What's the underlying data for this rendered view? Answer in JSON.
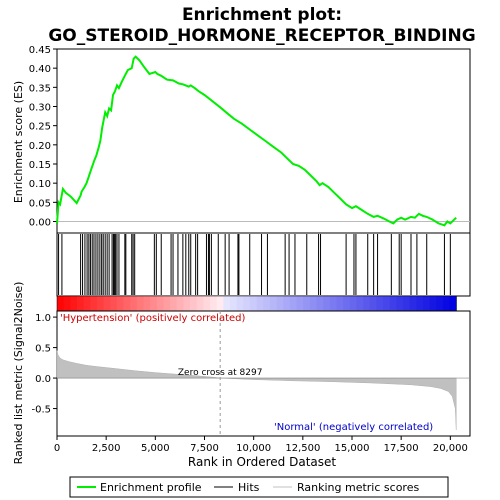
{
  "chart_data": {
    "type": "line",
    "title_line1": "Enrichment plot:",
    "title_line2": "GO_STEROID_HORMONE_RECEPTOR_BINDING",
    "top_panel": {
      "ylabel": "Enrichment score (ES)",
      "ylim": [
        -0.03,
        0.45
      ],
      "yticks": [
        "0.00",
        "0.05",
        "0.10",
        "0.15",
        "0.20",
        "0.25",
        "0.30",
        "0.35",
        "0.40",
        "0.45"
      ],
      "xlim": [
        0,
        21000
      ],
      "series": [
        {
          "name": "Enrichment profile",
          "color": "#00ee00",
          "x": [
            0,
            80,
            160,
            300,
            450,
            700,
            1000,
            1200,
            1250,
            1400,
            1500,
            1600,
            1700,
            1800,
            1900,
            2000,
            2100,
            2200,
            2300,
            2350,
            2450,
            2550,
            2650,
            2750,
            2850,
            2950,
            3050,
            3150,
            3300,
            3450,
            3600,
            3800,
            3900,
            4000,
            4200,
            4400,
            4700,
            5000,
            5100,
            5300,
            5600,
            5900,
            6200,
            6400,
            6700,
            6800,
            7000,
            7200,
            7500,
            7800,
            8000,
            8300,
            8600,
            9000,
            9400,
            9800,
            10200,
            10600,
            11000,
            11400,
            11700,
            12000,
            12300,
            12600,
            12900,
            13200,
            13350,
            13500,
            13800,
            14100,
            14400,
            14700,
            15000,
            15200,
            15500,
            15800,
            16100,
            16300,
            16600,
            16900,
            17100,
            17300,
            17500,
            17700,
            18000,
            18200,
            18400,
            18600,
            18800,
            19100,
            19400,
            19700,
            19850,
            20000,
            20300
          ],
          "y": [
            -0.005,
            0.05,
            0.045,
            0.085,
            0.075,
            0.065,
            0.048,
            0.068,
            0.078,
            0.09,
            0.1,
            0.115,
            0.13,
            0.145,
            0.16,
            0.172,
            0.19,
            0.21,
            0.245,
            0.258,
            0.285,
            0.275,
            0.295,
            0.29,
            0.33,
            0.34,
            0.355,
            0.348,
            0.365,
            0.38,
            0.395,
            0.4,
            0.425,
            0.43,
            0.42,
            0.405,
            0.385,
            0.39,
            0.385,
            0.38,
            0.37,
            0.368,
            0.36,
            0.358,
            0.352,
            0.355,
            0.348,
            0.34,
            0.33,
            0.318,
            0.31,
            0.298,
            0.285,
            0.268,
            0.255,
            0.24,
            0.225,
            0.21,
            0.195,
            0.18,
            0.165,
            0.15,
            0.145,
            0.135,
            0.12,
            0.105,
            0.095,
            0.1,
            0.09,
            0.075,
            0.06,
            0.045,
            0.035,
            0.04,
            0.03,
            0.02,
            0.012,
            0.015,
            0.008,
            0.0,
            -0.005,
            0.005,
            0.01,
            0.005,
            0.012,
            0.01,
            0.02,
            0.015,
            0.012,
            0.005,
            -0.005,
            -0.01,
            0.0,
            -0.005,
            0.01
          ]
        }
      ]
    },
    "hits": [
      80,
      250,
      1200,
      1300,
      1420,
      1530,
      1620,
      1700,
      1790,
      1880,
      1980,
      2080,
      2180,
      2270,
      2350,
      2450,
      2550,
      2650,
      2800,
      2870,
      2920,
      2980,
      3050,
      3150,
      3450,
      3500,
      3800,
      3870,
      3950,
      4950,
      5050,
      5300,
      5800,
      5900,
      6150,
      6400,
      6550,
      6700,
      6800,
      7050,
      7150,
      7600,
      7700,
      7750,
      7850,
      8200,
      8550,
      8750,
      9200,
      9250,
      9800,
      10400,
      10700,
      11600,
      11800,
      12100,
      12700,
      13300,
      13400,
      14700,
      15100,
      15200,
      15800,
      16100,
      16300,
      17000,
      17400,
      17500,
      18000,
      18300,
      18800,
      19700,
      20000
    ],
    "bottom_panel": {
      "ylabel": "Ranked list metric (Signal2Noise)",
      "ylim": [
        -0.95,
        1.1
      ],
      "yticks": [
        "-0.5",
        "0.0",
        "0.5",
        "1.0"
      ],
      "xticks": [
        "0",
        "2,500",
        "5,000",
        "7,500",
        "10,000",
        "12,500",
        "15,000",
        "17,500",
        "20,000"
      ],
      "xlabel": "Rank in Ordered Dataset",
      "metric_points": {
        "x": [
          0,
          50,
          150,
          300,
          600,
          1000,
          1500,
          2000,
          3000,
          4000,
          5000,
          6000,
          7000,
          8000,
          8297,
          9000,
          10000,
          12000,
          14000,
          16000,
          18000,
          19000,
          19500,
          19900,
          20100,
          20250,
          20300
        ],
        "y": [
          0.45,
          0.38,
          0.33,
          0.3,
          0.27,
          0.24,
          0.21,
          0.19,
          0.155,
          0.12,
          0.09,
          0.065,
          0.04,
          0.012,
          0.0,
          -0.01,
          -0.025,
          -0.045,
          -0.06,
          -0.08,
          -0.11,
          -0.14,
          -0.17,
          -0.22,
          -0.3,
          -0.5,
          -0.85
        ]
      },
      "zero_cross_label": "Zero cross at 8297",
      "zero_cross_x": 8297,
      "positive_label": "'Hypertension' (positively correlated)",
      "negative_label": "'Normal' (negatively correlated)"
    },
    "legend": {
      "items": [
        {
          "label": "Enrichment profile",
          "color": "#00ee00"
        },
        {
          "label": "Hits",
          "color": "#000000"
        },
        {
          "label": "Ranking metric scores",
          "color": "#c0c0c0"
        }
      ]
    },
    "colors": {
      "positive_label": "#cc0000",
      "negative_label": "#0000cc",
      "metric_fill": "#c0c0c0",
      "zero_line": "#a0a0a0"
    }
  }
}
